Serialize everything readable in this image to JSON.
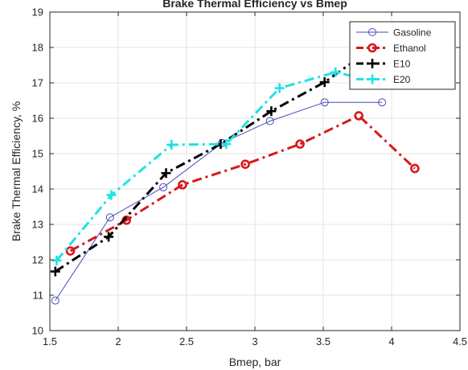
{
  "chart_data": {
    "type": "line",
    "title": "Brake Thermal Efficiency vs Bmep",
    "xlabel": "Bmep, bar",
    "ylabel": "Brake Thermal Efficiency, %",
    "xlim": [
      1.5,
      4.5
    ],
    "ylim": [
      10,
      19
    ],
    "xticks": [
      "1.5",
      "2",
      "2.5",
      "3",
      "3.5",
      "4",
      "4.5"
    ],
    "yticks": [
      "10",
      "11",
      "12",
      "13",
      "14",
      "15",
      "16",
      "17",
      "18",
      "19"
    ],
    "grid": true,
    "legend_position": "top-right",
    "series": [
      {
        "name": "Gasoline",
        "color": "#4a4ab8",
        "marker": "circle",
        "line": "solid",
        "x": [
          1.54,
          1.94,
          2.33,
          2.76,
          3.11,
          3.51,
          3.93
        ],
        "y": [
          10.85,
          13.2,
          14.05,
          15.3,
          15.92,
          16.45,
          16.45
        ]
      },
      {
        "name": "Ethanol",
        "color": "#d7191c",
        "marker": "circle",
        "line": "dashdot",
        "x": [
          1.65,
          2.06,
          2.47,
          2.93,
          3.33,
          3.76,
          4.17
        ],
        "y": [
          12.25,
          13.12,
          14.12,
          14.7,
          15.27,
          16.07,
          14.58
        ]
      },
      {
        "name": "E10",
        "color": "#000000",
        "marker": "plus",
        "line": "dashdot",
        "x": [
          1.54,
          1.93,
          2.35,
          2.75,
          3.12,
          3.51,
          3.83
        ],
        "y": [
          11.67,
          12.65,
          14.45,
          15.27,
          16.2,
          17.02,
          17.9
        ]
      },
      {
        "name": "E20",
        "color": "#1ee3e3",
        "marker": "plus",
        "line": "dashdot",
        "x": [
          1.55,
          1.95,
          2.39,
          2.79,
          3.18,
          3.59,
          3.93
        ],
        "y": [
          11.98,
          13.83,
          15.25,
          15.27,
          16.85,
          17.3,
          17.0
        ]
      }
    ]
  }
}
